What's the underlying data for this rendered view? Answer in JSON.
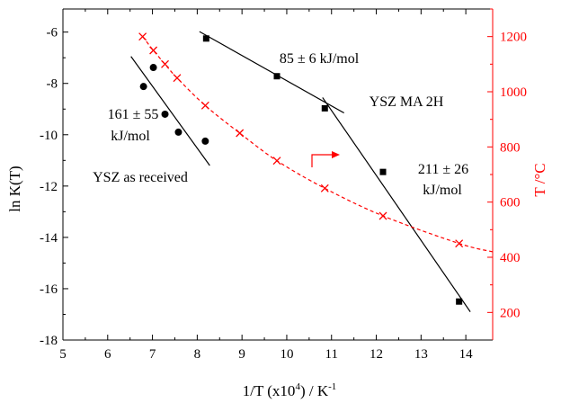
{
  "chart_data": {
    "type": "scatter",
    "xlabel": "1/T (x10",
    "xlabel_sup": "4",
    "xlabel_tail": ") / K",
    "xlabel_sup2": "-1",
    "ylabel": "ln K(T)",
    "y2label": "T /°C",
    "xlim": [
      5,
      14.6
    ],
    "ylim": [
      -18,
      -5.1
    ],
    "y2lim": [
      100,
      1300
    ],
    "xticks": [
      5,
      6,
      7,
      8,
      9,
      10,
      11,
      12,
      13,
      14
    ],
    "yticks": [
      -6,
      -8,
      -10,
      -12,
      -14,
      -16,
      -18
    ],
    "y2ticks": [
      200,
      400,
      600,
      800,
      1000,
      1200
    ],
    "colors": {
      "left": "#000000",
      "right": "#ff0000"
    },
    "series": [
      {
        "axis": "left",
        "marker": "circle",
        "points": [
          [
            6.8,
            -8.12
          ],
          [
            7.02,
            -7.38
          ],
          [
            7.28,
            -9.2
          ],
          [
            7.58,
            -9.9
          ],
          [
            8.18,
            -10.25
          ]
        ],
        "fit": [
          [
            6.52,
            -6.95
          ],
          [
            8.28,
            -11.2
          ]
        ]
      },
      {
        "axis": "left",
        "marker": "square",
        "points": [
          [
            8.2,
            -6.25
          ],
          [
            9.78,
            -7.72
          ],
          [
            10.85,
            -8.97
          ],
          [
            12.15,
            -11.45
          ],
          [
            13.85,
            -16.5
          ]
        ]
      },
      {
        "axis": "left",
        "marker": "none",
        "fit": [
          [
            8.05,
            -5.98
          ],
          [
            11.28,
            -9.15
          ]
        ]
      },
      {
        "axis": "left",
        "marker": "none",
        "fit": [
          [
            10.8,
            -8.55
          ],
          [
            14.1,
            -16.9
          ]
        ]
      },
      {
        "axis": "right",
        "marker": "cross",
        "points": [
          [
            6.78,
            1200
          ],
          [
            7.02,
            1150
          ],
          [
            7.28,
            1100
          ],
          [
            7.55,
            1050
          ],
          [
            8.18,
            950
          ],
          [
            8.95,
            850
          ],
          [
            9.78,
            750
          ],
          [
            10.85,
            650
          ],
          [
            12.15,
            550
          ],
          [
            13.85,
            450
          ]
        ],
        "curve": [
          [
            6.78,
            1200
          ],
          [
            7.02,
            1150
          ],
          [
            7.28,
            1100
          ],
          [
            7.55,
            1050
          ],
          [
            8.18,
            950
          ],
          [
            8.95,
            850
          ],
          [
            9.78,
            750
          ],
          [
            10.85,
            650
          ],
          [
            12.15,
            550
          ],
          [
            13.85,
            450
          ],
          [
            14.6,
            420
          ]
        ]
      }
    ],
    "annotations": [
      {
        "text": "85 ± 6 kJ/mol",
        "at": [
          10.75,
          -7.12
        ]
      },
      {
        "text": "161 ± 55",
        "at": [
          7.35,
          -9.0
        ]
      },
      {
        "text": "kJ/mol",
        "at": [
          7.3,
          -9.85
        ]
      },
      {
        "text": "YSZ as received",
        "at": [
          7.6,
          -11.8
        ]
      },
      {
        "text": "YSZ MA 2H",
        "at": [
          12.35,
          -8.65
        ]
      },
      {
        "text": "211 ± 26",
        "at": [
          13.45,
          -11.3
        ]
      },
      {
        "text": "kJ/mol",
        "at": [
          13.42,
          -12.2
        ]
      }
    ]
  }
}
